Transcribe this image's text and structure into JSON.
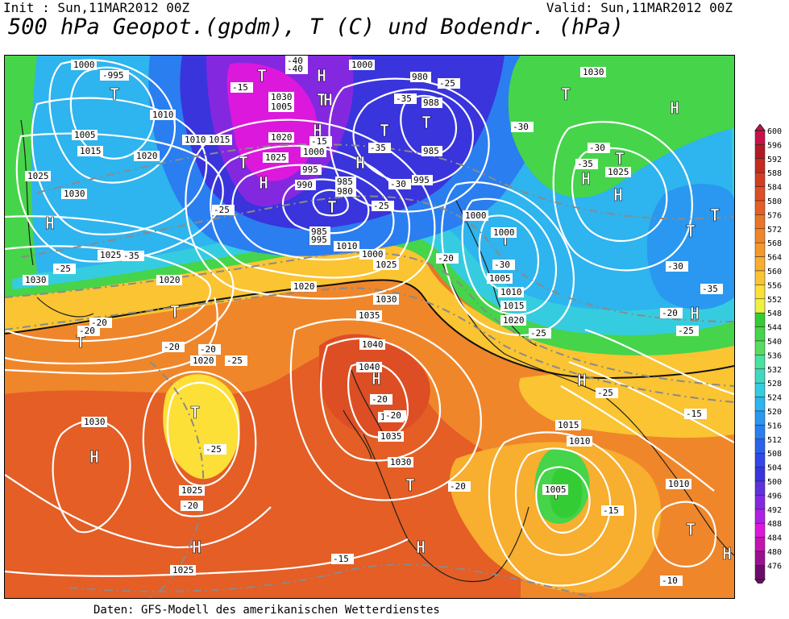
{
  "header": {
    "init": "Init : Sun,11MAR2012 00Z",
    "valid": "Valid: Sun,11MAR2012 00Z",
    "title": "500 hPa Geopot.(gpdm), T (C) und Bodendr. (hPa)"
  },
  "footer": {
    "source": "Daten: GFS-Modell des amerikanischen Wetterdienstes"
  },
  "legend": {
    "levels": [
      "600",
      "596",
      "592",
      "588",
      "584",
      "580",
      "576",
      "572",
      "568",
      "564",
      "560",
      "556",
      "552",
      "548",
      "544",
      "540",
      "536",
      "532",
      "528",
      "524",
      "520",
      "516",
      "512",
      "508",
      "504",
      "500",
      "496",
      "492",
      "488",
      "484",
      "480",
      "476"
    ],
    "colors": [
      "#c8104a",
      "#b01a20",
      "#c42a20",
      "#d43c22",
      "#de4e24",
      "#e45e26",
      "#ea7428",
      "#f0862a",
      "#f4982c",
      "#f8ae2e",
      "#fac432",
      "#fce038",
      "#f0f040",
      "#34cc34",
      "#46d44a",
      "#58dc60",
      "#4ae0a0",
      "#40d8c0",
      "#36cce0",
      "#2eb4ee",
      "#2a98f0",
      "#2a7ef0",
      "#2a62ee",
      "#3048e8",
      "#3a34dc",
      "#6030dc",
      "#8428e0",
      "#ae20e4",
      "#dc18dc",
      "#c414b0",
      "#9a1090",
      "#6c0c68"
    ]
  },
  "centers": [
    {
      "label": "T"
    },
    {
      "label": "T"
    },
    {
      "label": "T"
    },
    {
      "label": "T"
    },
    {
      "label": "T"
    },
    {
      "label": "T"
    },
    {
      "label": "T"
    },
    {
      "label": "T"
    },
    {
      "label": "T"
    },
    {
      "label": "T"
    },
    {
      "label": "T"
    },
    {
      "label": "T"
    },
    {
      "label": "T"
    },
    {
      "label": "T"
    },
    {
      "label": "T"
    },
    {
      "label": "T"
    },
    {
      "label": "T"
    },
    {
      "label": "T"
    },
    {
      "label": "H"
    },
    {
      "label": "H"
    },
    {
      "label": "H"
    },
    {
      "label": "H"
    },
    {
      "label": "H"
    },
    {
      "label": "H"
    },
    {
      "label": "H"
    },
    {
      "label": "H"
    },
    {
      "label": "H"
    },
    {
      "label": "H"
    },
    {
      "label": "H"
    },
    {
      "label": "H"
    },
    {
      "label": "H"
    },
    {
      "label": "H"
    },
    {
      "label": "H"
    },
    {
      "label": "H"
    }
  ],
  "isobar_labels": [
    "1000",
    "-995",
    "1010",
    "1005",
    "1015",
    "1020",
    "1025",
    "1030",
    "1010",
    "1015",
    "1020",
    "1025",
    "1030",
    "1000",
    "995",
    "1005",
    "1000",
    "985",
    "990",
    "980",
    "985",
    "995",
    "980",
    "988",
    "985",
    "995",
    "1000",
    "1000",
    "1005",
    "1010",
    "1020",
    "1015",
    "1025",
    "1030",
    "1035",
    "1040",
    "1030",
    "1035",
    "1030",
    "1025",
    "1020",
    "1030",
    "1020",
    "1025",
    "1010",
    "1005",
    "1015",
    "1010",
    "1000",
    "1025",
    "1025",
    "1020",
    "1025",
    "1030",
    "1035",
    "1040",
    "1010"
  ],
  "temp_labels": [
    "-40",
    "-40",
    "-15",
    "-15",
    "-25",
    "-35",
    "-35",
    "-30",
    "-30",
    "-25",
    "-25",
    "-30",
    "-35",
    "-35",
    "-30",
    "-25",
    "-20",
    "-20",
    "-20",
    "-20",
    "-20",
    "-25",
    "-25",
    "-20",
    "-25",
    "-20",
    "-15",
    "-15",
    "-20",
    "-25",
    "-25",
    "-20",
    "-15",
    "-10",
    "-35",
    "-20",
    "-30"
  ]
}
